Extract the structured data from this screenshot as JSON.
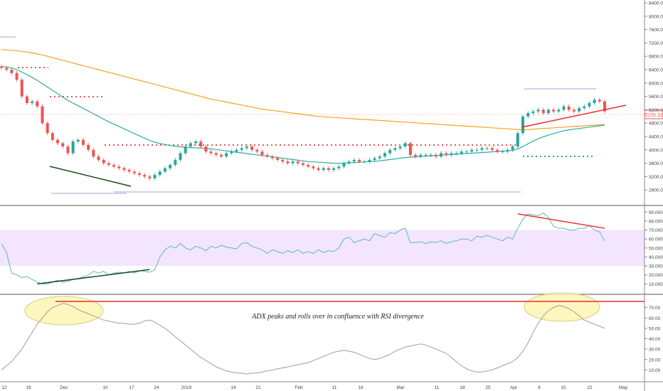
{
  "chart_data": {
    "type": "candlestick-with-indicators",
    "price": {
      "ylim": [
        2400,
        8400
      ],
      "yticks": [
        "8400.00",
        "8000.00",
        "7600.00",
        "7200.00",
        "6800.00",
        "6400.00",
        "6000.00",
        "5600.00",
        "5200.00",
        "4800.00",
        "4400.00",
        "4000.00",
        "3600.00",
        "3200.00",
        "2800.00"
      ],
      "last_price": "5155.32",
      "close_series": [
        6450,
        6400,
        6300,
        6100,
        5600,
        5400,
        5450,
        5300,
        4800,
        4500,
        4300,
        4200,
        4100,
        3900,
        4250,
        4300,
        4150,
        4000,
        3800,
        3700,
        3600,
        3550,
        3500,
        3450,
        3400,
        3350,
        3300,
        3250,
        3200,
        3150,
        3250,
        3350,
        3450,
        3550,
        3700,
        3900,
        4100,
        4200,
        4250,
        4100,
        3950,
        3900,
        3850,
        3800,
        3900,
        3950,
        4000,
        4050,
        4100,
        4000,
        3950,
        3850,
        3800,
        3750,
        3700,
        3650,
        3600,
        3650,
        3600,
        3550,
        3500,
        3450,
        3400,
        3450,
        3400,
        3450,
        3500,
        3600,
        3650,
        3700,
        3650,
        3650,
        3700,
        3750,
        3800,
        3900,
        4000,
        4050,
        4100,
        4200,
        3850,
        3800,
        3850,
        3850,
        3850,
        3800,
        3900,
        3850,
        3900,
        3900,
        3950,
        3950,
        4000,
        4000,
        4050,
        4050,
        4000,
        3950,
        3950,
        4000,
        4100,
        4500,
        5000,
        5100,
        5150,
        5200,
        5100,
        5200,
        5150,
        5200,
        5300,
        5200,
        5150,
        5250,
        5300,
        5400,
        5500,
        5450,
        5155
      ],
      "ema_orange": [
        7000,
        6990,
        6980,
        6970,
        6950,
        6930,
        6900,
        6870,
        6840,
        6800,
        6760,
        6720,
        6680,
        6640,
        6600,
        6560,
        6520,
        6480,
        6440,
        6400,
        6360,
        6320,
        6280,
        6240,
        6200,
        6160,
        6120,
        6080,
        6040,
        6000,
        5960,
        5920,
        5880,
        5840,
        5800,
        5760,
        5720,
        5680,
        5640,
        5600,
        5560,
        5520,
        5490,
        5460,
        5430,
        5400,
        5370,
        5340,
        5310,
        5280,
        5250,
        5220,
        5200,
        5180,
        5160,
        5140,
        5120,
        5100,
        5080,
        5060,
        5040,
        5020,
        5000,
        4990,
        4980,
        4970,
        4960,
        4950,
        4940,
        4930,
        4920,
        4910,
        4900,
        4890,
        4880,
        4870,
        4860,
        4850,
        4840,
        4830,
        4820,
        4810,
        4800,
        4790,
        4780,
        4770,
        4760,
        4750,
        4740,
        4730,
        4720,
        4710,
        4700,
        4690,
        4680,
        4670,
        4660,
        4650,
        4640,
        4630,
        4620,
        4610,
        4600,
        4610,
        4620,
        4630,
        4640,
        4650,
        4660,
        4670,
        4680,
        4690,
        4700,
        4710,
        4720,
        4730,
        4740,
        4750,
        4760
      ],
      "ema_teal": [
        6500,
        6480,
        6450,
        6400,
        6330,
        6250,
        6170,
        6080,
        5980,
        5880,
        5780,
        5680,
        5580,
        5480,
        5400,
        5320,
        5240,
        5160,
        5080,
        5000,
        4920,
        4840,
        4770,
        4700,
        4630,
        4560,
        4490,
        4420,
        4350,
        4280,
        4230,
        4190,
        4160,
        4130,
        4110,
        4090,
        4080,
        4070,
        4060,
        4050,
        4040,
        4030,
        4010,
        3990,
        3970,
        3950,
        3930,
        3910,
        3890,
        3870,
        3850,
        3830,
        3810,
        3790,
        3770,
        3750,
        3730,
        3710,
        3690,
        3670,
        3650,
        3640,
        3630,
        3620,
        3610,
        3600,
        3600,
        3600,
        3610,
        3620,
        3630,
        3640,
        3650,
        3660,
        3670,
        3690,
        3710,
        3730,
        3750,
        3770,
        3780,
        3790,
        3800,
        3810,
        3820,
        3830,
        3840,
        3850,
        3860,
        3870,
        3880,
        3890,
        3900,
        3910,
        3920,
        3930,
        3940,
        3950,
        3960,
        3970,
        3980,
        4030,
        4100,
        4180,
        4260,
        4330,
        4390,
        4440,
        4490,
        4530,
        4570,
        4600,
        4620,
        4640,
        4660,
        4680,
        4700,
        4720,
        4740
      ]
    },
    "rsi": {
      "ylim": [
        0,
        95
      ],
      "yticks": [
        "90.0000",
        "80.0000",
        "70.0000",
        "60.0000",
        "50.0000",
        "40.0000",
        "30.0000",
        "20.0000",
        "10.0000"
      ],
      "band": [
        30,
        70
      ],
      "values": [
        55,
        45,
        22,
        20,
        17,
        18,
        15,
        12,
        10,
        10,
        12,
        14,
        12,
        13,
        15,
        16,
        18,
        20,
        24,
        22,
        24,
        20,
        22,
        23,
        22,
        24,
        22,
        25,
        24,
        23,
        26,
        40,
        48,
        52,
        50,
        55,
        50,
        48,
        52,
        50,
        47,
        52,
        50,
        53,
        51,
        50,
        49,
        55,
        56,
        52,
        50,
        48,
        44,
        48,
        46,
        44,
        47,
        45,
        48,
        44,
        46,
        44,
        48,
        45,
        47,
        46,
        50,
        60,
        62,
        56,
        58,
        60,
        58,
        66,
        64,
        62,
        67,
        66,
        70,
        72,
        56,
        56,
        57,
        55,
        57,
        56,
        58,
        55,
        57,
        58,
        60,
        60,
        58,
        63,
        62,
        64,
        62,
        60,
        58,
        62,
        60,
        72,
        82,
        88,
        87,
        86,
        89,
        84,
        74,
        72,
        72,
        70,
        70,
        72,
        72,
        75,
        70,
        68,
        58
      ],
      "divergence_lines": [
        {
          "from": {
            "i": 7,
            "v": 10
          },
          "to": {
            "i": 29,
            "v": 26
          }
        },
        {
          "from": {
            "i": 101,
            "v": 88
          },
          "to": {
            "i": 118,
            "v": 72
          }
        }
      ]
    },
    "adx": {
      "ylim": [
        0,
        80
      ],
      "yticks": [
        "70.00",
        "60.00",
        "50.00",
        "40.00",
        "30.00",
        "20.00",
        "10.00"
      ],
      "values": [
        10,
        14,
        18,
        24,
        30,
        38,
        46,
        54,
        60,
        66,
        70,
        72,
        74,
        73,
        71,
        68,
        66,
        64,
        62,
        60,
        58,
        57,
        56,
        55,
        55,
        54,
        54,
        55,
        57,
        58,
        56,
        53,
        50,
        46,
        42,
        38,
        34,
        30,
        26,
        22,
        19,
        16,
        13,
        11,
        9,
        8,
        7,
        7,
        6,
        7,
        7,
        8,
        9,
        10,
        11,
        12,
        13,
        14,
        15,
        16,
        17,
        19,
        21,
        23,
        25,
        27,
        28,
        29,
        28,
        27,
        25,
        23,
        21,
        20,
        21,
        23,
        25,
        28,
        30,
        32,
        33,
        34,
        35,
        34,
        32,
        30,
        28,
        26,
        22,
        18,
        14,
        11,
        9,
        8,
        8,
        9,
        10,
        12,
        14,
        16,
        18,
        22,
        28,
        36,
        46,
        55,
        62,
        67,
        70,
        72,
        71,
        69,
        66,
        62,
        58,
        56,
        54,
        52,
        50
      ],
      "annotation": "ADX peaks and rolls over in confluence with RSI divergence"
    },
    "x_axis": {
      "ticks": [
        "12",
        "19",
        "Dec",
        "10",
        "17",
        "24",
        "2019",
        "14",
        "21",
        "Feb",
        "11",
        "18",
        "Mar",
        "11",
        "18",
        "25",
        "Apr",
        "8",
        "15",
        "22",
        "May"
      ]
    },
    "colors": {
      "up_candle": "#26a69a",
      "down_candle": "#ef5350",
      "ema_long": "#f7a21b",
      "ema_mid": "#2bada0",
      "ema_short": "#9fa8da",
      "rsi_line": "#5ab6c7",
      "rsi_band": "#f3e5fd",
      "adx_line": "#9e9e9e",
      "trendline_red": "#ee2b2b",
      "trendline_dark": "#1b4a1b",
      "highlight_ellipse": "#fdf6b5"
    }
  }
}
